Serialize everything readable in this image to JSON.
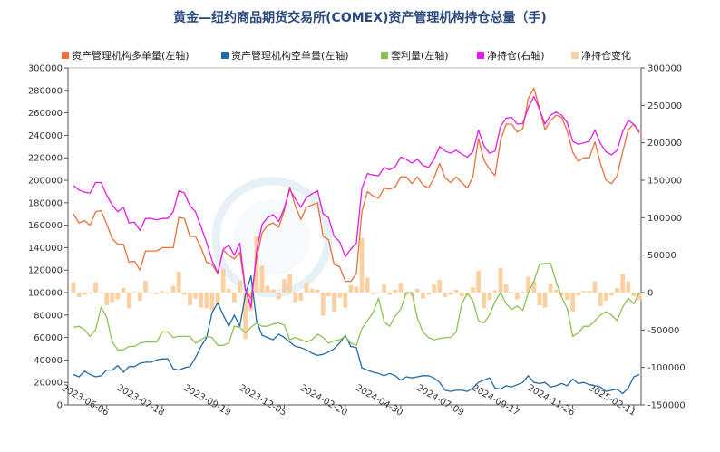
{
  "chart_data": {
    "type": "line",
    "title": "黄金—纽约商品期货交易所(COMEX)资产管理机构持仓总量（手)",
    "legend": [
      {
        "name": "资产管理机构多单量(左轴)",
        "color": "#e8703a"
      },
      {
        "name": "资产管理机构空单量(左轴)",
        "color": "#1f6aa6"
      },
      {
        "name": "套利量(左轴)",
        "color": "#8cc152"
      },
      {
        "name": "净持仓(右轴)",
        "color": "#e61ae6"
      },
      {
        "name": "净持仓变化",
        "color": "#fdd0a2"
      }
    ],
    "left_axis": {
      "min": 0,
      "max": 300000,
      "step": 20000,
      "ticks": [
        "0",
        "20000",
        "40000",
        "60000",
        "80000",
        "100000",
        "120000",
        "140000",
        "160000",
        "180000",
        "200000",
        "220000",
        "240000",
        "260000",
        "280000",
        "300000"
      ]
    },
    "right_axis": {
      "min": -150000,
      "max": 300000,
      "step": 50000,
      "ticks": [
        "-150000",
        "-100000",
        "-50000",
        "0",
        "50000",
        "100000",
        "150000",
        "200000",
        "250000",
        "300000"
      ]
    },
    "x_ticks": [
      "2023-06-06",
      "2023-07-18",
      "2023-09-19",
      "2023-12-05",
      "2024-02-20",
      "2024-04-30",
      "2024-07-09",
      "2024-09-17",
      "2024-11-26",
      "2025-02-11"
    ],
    "n_weeks": 103,
    "series": [
      {
        "name": "资产管理机构多单量(左轴)",
        "axis": "left",
        "color": "#e8703a",
        "values": [
          170000,
          162000,
          164000,
          160000,
          172000,
          173000,
          161000,
          148000,
          143000,
          143000,
          127000,
          128000,
          120000,
          137000,
          137000,
          137000,
          140000,
          140000,
          140000,
          167000,
          166000,
          150000,
          150000,
          140000,
          127000,
          125000,
          117000,
          138000,
          133000,
          130000,
          136000,
          102000,
          95000,
          130000,
          153000,
          160000,
          162000,
          158000,
          173000,
          194000,
          177000,
          165000,
          176000,
          178000,
          180000,
          150000,
          147000,
          125000,
          123000,
          110000,
          110000,
          117000,
          172000,
          190000,
          186000,
          184000,
          193000,
          192000,
          194000,
          203000,
          203000,
          197000,
          203000,
          196000,
          193000,
          202000,
          215000,
          202000,
          198000,
          203000,
          198000,
          193000,
          203000,
          237000,
          218000,
          210000,
          204000,
          236000,
          250000,
          250000,
          243000,
          246000,
          273000,
          282000,
          264000,
          245000,
          253000,
          258000,
          256000,
          244000,
          225000,
          217000,
          220000,
          220000,
          234000,
          215000,
          200000,
          197000,
          204000,
          225000,
          245000,
          250000,
          242000
        ]
      },
      {
        "name": "资产管理机构空单量(左轴)",
        "axis": "left",
        "color": "#1f6aa6",
        "values": [
          27000,
          25000,
          30000,
          27000,
          25000,
          26000,
          31000,
          31000,
          35000,
          29000,
          34000,
          34000,
          37000,
          38000,
          38000,
          40000,
          41000,
          41000,
          32000,
          31000,
          33000,
          34000,
          42000,
          52000,
          60000,
          82000,
          91000,
          80000,
          70000,
          80000,
          70000,
          98000,
          115000,
          75000,
          62000,
          60000,
          58000,
          63000,
          60000,
          56000,
          52000,
          51000,
          49000,
          46000,
          44000,
          45000,
          47000,
          50000,
          55000,
          62000,
          52000,
          51000,
          33000,
          31000,
          29000,
          28000,
          26000,
          28000,
          26000,
          22000,
          25000,
          24000,
          25000,
          26000,
          26000,
          24000,
          20000,
          13000,
          12000,
          13000,
          13000,
          12000,
          15000,
          20000,
          22000,
          24000,
          15000,
          14000,
          17000,
          16000,
          18000,
          20000,
          26000,
          20000,
          19000,
          20000,
          16000,
          17000,
          19000,
          17000,
          23000,
          19000,
          20000,
          18000,
          17000,
          16000,
          12000,
          13000,
          14000,
          10000,
          15000,
          25000,
          27000
        ]
      },
      {
        "name": "套利量(左轴)",
        "axis": "left",
        "color": "#8cc152",
        "values": [
          69000,
          70000,
          67000,
          61000,
          67000,
          87000,
          78000,
          56000,
          49000,
          49000,
          52000,
          52000,
          55000,
          56000,
          56000,
          56000,
          65000,
          65000,
          60000,
          61000,
          61000,
          61000,
          55000,
          58000,
          61000,
          60000,
          53000,
          53000,
          55000,
          70000,
          69000,
          64000,
          69000,
          73000,
          70000,
          70000,
          72000,
          73000,
          71000,
          58000,
          60000,
          58000,
          56000,
          58000,
          63000,
          60000,
          55000,
          57000,
          58000,
          61000,
          55000,
          53000,
          68000,
          75000,
          82000,
          95000,
          74000,
          70000,
          79000,
          85000,
          100000,
          100000,
          77000,
          65000,
          60000,
          58000,
          59000,
          60000,
          60000,
          65000,
          90000,
          99000,
          93000,
          75000,
          73000,
          80000,
          92000,
          100000,
          90000,
          85000,
          88000,
          84000,
          100000,
          110000,
          125000,
          126000,
          126000,
          110000,
          96000,
          86000,
          61000,
          64000,
          70000,
          70000,
          75000,
          80000,
          83000,
          80000,
          75000,
          87000,
          95000,
          90000,
          100000
        ]
      },
      {
        "name": "净持仓(右轴)",
        "axis": "right",
        "color": "#e61ae6",
        "values": [
          143000,
          137000,
          134000,
          133000,
          147000,
          147000,
          130000,
          117000,
          108000,
          114000,
          93000,
          94000,
          83000,
          99000,
          99000,
          97000,
          99000,
          99000,
          108000,
          136000,
          133000,
          116000,
          108000,
          88000,
          67000,
          43000,
          26000,
          58000,
          63000,
          50000,
          66000,
          4000,
          -20000,
          55000,
          91000,
          100000,
          104000,
          95000,
          113000,
          138000,
          125000,
          114000,
          127000,
          132000,
          136000,
          105000,
          100000,
          75000,
          68000,
          48000,
          58000,
          66000,
          139000,
          159000,
          157000,
          156000,
          167000,
          164000,
          168000,
          181000,
          178000,
          173000,
          178000,
          170000,
          167000,
          178000,
          195000,
          189000,
          186000,
          190000,
          185000,
          181000,
          188000,
          217000,
          196000,
          186000,
          189000,
          222000,
          233000,
          234000,
          225000,
          226000,
          247000,
          262000,
          245000,
          225000,
          237000,
          241000,
          237000,
          227000,
          202000,
          198000,
          200000,
          202000,
          217000,
          199000,
          188000,
          184000,
          190000,
          215000,
          230000,
          225000,
          215000
        ]
      },
      {
        "name": "净持仓变化",
        "axis": "right",
        "type": "bar",
        "color": "#fdd0a2",
        "values": [
          14000,
          -6000,
          -3000,
          -1000,
          14000,
          0,
          -17000,
          -13000,
          -9000,
          6000,
          -21000,
          1000,
          -11000,
          16000,
          0,
          -2000,
          2000,
          0,
          9000,
          28000,
          -3000,
          -17000,
          -8000,
          -20000,
          -21000,
          -24000,
          -17000,
          32000,
          5000,
          -13000,
          16000,
          -62000,
          -24000,
          75000,
          36000,
          9000,
          4000,
          -9000,
          18000,
          25000,
          -13000,
          -11000,
          13000,
          5000,
          4000,
          -31000,
          -5000,
          -25000,
          -7000,
          -20000,
          10000,
          8000,
          73000,
          20000,
          -2000,
          -1000,
          11000,
          -3000,
          4000,
          13000,
          -3000,
          -5000,
          5000,
          -8000,
          -3000,
          11000,
          17000,
          -6000,
          -3000,
          4000,
          -5000,
          -4000,
          7000,
          29000,
          -21000,
          -10000,
          3000,
          33000,
          11000,
          1000,
          -9000,
          1000,
          21000,
          15000,
          -17000,
          -20000,
          12000,
          4000,
          -4000,
          -10000,
          -25000,
          -4000,
          2000,
          2000,
          15000,
          -18000,
          -11000,
          -4000,
          6000,
          25000,
          15000,
          -5000,
          -10000
        ]
      }
    ]
  }
}
